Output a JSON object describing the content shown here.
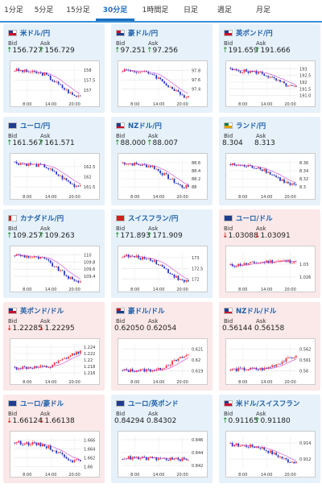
{
  "tabs": [
    {
      "id": "1m",
      "label": "1分足",
      "active": false
    },
    {
      "id": "5m",
      "label": "5分足",
      "active": false
    },
    {
      "id": "15m",
      "label": "15分足",
      "active": false
    },
    {
      "id": "30m",
      "label": "30分足",
      "active": true
    },
    {
      "id": "1h",
      "label": "1時間足",
      "active": false
    },
    {
      "id": "1d",
      "label": "日足",
      "active": false
    },
    {
      "id": "1w",
      "label": "週足",
      "active": false
    },
    {
      "id": "1mo",
      "label": "月足",
      "active": false
    }
  ],
  "labels": {
    "bid": "Bid",
    "ask": "Ask"
  },
  "colors": {
    "up": "#1a8a2a",
    "down": "#d01818",
    "candle_up": "#ff3030",
    "candle_down": "#2030c0",
    "ma": "#d040d0"
  },
  "cards": [
    {
      "id": "usdjpy",
      "flag": "us",
      "pair": "米ドル/円",
      "trend": "up",
      "bid": "156.727",
      "ask": "156.729",
      "bid_arrow": "↑",
      "ask_arrow": "↑",
      "chart_data": {
        "type": "candlestick",
        "x_ticks": [
          "8:00",
          "14:00",
          "20:00"
        ],
        "y_ticks": [
          "158",
          "157.5",
          "157"
        ],
        "ylim": [
          156.6,
          158.2
        ],
        "shape": "drop",
        "first": 158.0,
        "last": 156.72
      }
    },
    {
      "id": "audjpy",
      "flag": "au",
      "pair": "豪ドル/円",
      "trend": "up",
      "bid": "97.251",
      "ask": "97.256",
      "bid_arrow": "↑",
      "ask_arrow": "↑",
      "chart_data": {
        "type": "candlestick",
        "x_ticks": [
          "8:00",
          "14:00",
          "20:00"
        ],
        "y_ticks": [
          "97.8",
          "97.6",
          "97.4"
        ],
        "ylim": [
          97.2,
          97.9
        ],
        "shape": "drop",
        "first": 97.82,
        "last": 97.25
      }
    },
    {
      "id": "gbpjpy",
      "flag": "gb",
      "pair": "英ポンド/円",
      "trend": "up",
      "bid": "191.659",
      "ask": "191.666",
      "bid_arrow": "↑",
      "ask_arrow": "↑",
      "chart_data": {
        "type": "candlestick",
        "x_ticks": [
          "8:00",
          "14:00",
          "20:00"
        ],
        "y_ticks": [
          "193",
          "192.5",
          "192",
          "191.5",
          "191.0"
        ],
        "ylim": [
          190.8,
          193.2
        ],
        "shape": "drop",
        "first": 192.9,
        "last": 191.66
      }
    },
    {
      "id": "eurjpy",
      "flag": "eu",
      "pair": "ユーロ/円",
      "trend": "up",
      "bid": "161.567",
      "ask": "161.571",
      "bid_arrow": "↑",
      "ask_arrow": "↑",
      "chart_data": {
        "type": "candlestick",
        "x_ticks": [
          "8:00",
          "14:00",
          "20:00"
        ],
        "y_ticks": [
          "162.5",
          "162",
          "161.5"
        ],
        "ylim": [
          161.3,
          162.9
        ],
        "shape": "drop",
        "first": 162.7,
        "last": 161.57
      }
    },
    {
      "id": "nzdjpy",
      "flag": "nz",
      "pair": "NZドル/円",
      "trend": "up",
      "bid": "88.000",
      "ask": "88.007",
      "bid_arrow": "↑",
      "ask_arrow": "↑",
      "chart_data": {
        "type": "candlestick",
        "x_ticks": [
          "8:00",
          "14:00",
          "20:00"
        ],
        "y_ticks": [
          "88.6",
          "88.4",
          "88.2",
          "88"
        ],
        "ylim": [
          87.9,
          88.7
        ],
        "shape": "drop",
        "first": 88.6,
        "last": 88.0
      }
    },
    {
      "id": "zarjpy",
      "flag": "za",
      "pair": "ランド/円",
      "trend": "up",
      "bid": "8.304",
      "ask": "8.313",
      "bid_arrow": "",
      "ask_arrow": "",
      "chart_data": {
        "type": "candlestick",
        "x_ticks": [
          "8:00",
          "14:00",
          "20:00"
        ],
        "y_ticks": [
          "8.36",
          "8.34",
          "8.32",
          "8.3"
        ],
        "ylim": [
          8.29,
          8.37
        ],
        "shape": "drop",
        "first": 8.355,
        "last": 8.305
      }
    },
    {
      "id": "cadjpy",
      "flag": "ca",
      "pair": "カナダドル/円",
      "trend": "up",
      "bid": "109.257",
      "ask": "109.263",
      "bid_arrow": "↑",
      "ask_arrow": "↑",
      "chart_data": {
        "type": "candlestick",
        "x_ticks": [
          "8:00",
          "14:00",
          "20:00"
        ],
        "y_ticks": [
          "110",
          "109.8",
          "109.6",
          "109.4"
        ],
        "ylim": [
          109.2,
          110.1
        ],
        "shape": "drop",
        "first": 110.0,
        "last": 109.26
      }
    },
    {
      "id": "chfjpy",
      "flag": "ch",
      "pair": "スイスフラン/円",
      "trend": "up",
      "bid": "171.893",
      "ask": "171.909",
      "bid_arrow": "↑",
      "ask_arrow": "↑",
      "chart_data": {
        "type": "candlestick",
        "x_ticks": [
          "8:00",
          "14:00",
          "20:00"
        ],
        "y_ticks": [
          "173",
          "172.5",
          "172"
        ],
        "ylim": [
          171.8,
          173.3
        ],
        "shape": "drop",
        "first": 173.1,
        "last": 171.9
      }
    },
    {
      "id": "eurusd",
      "flag": "eu",
      "pair": "ユーロ/ドル",
      "trend": "down",
      "bid": "1.03088",
      "ask": "1.03091",
      "bid_arrow": "↓",
      "ask_arrow": "↓",
      "chart_data": {
        "type": "candlestick",
        "x_ticks": [
          "8:00",
          "14:00",
          "20:00"
        ],
        "y_ticks": [
          "1.03",
          "1.026"
        ],
        "ylim": [
          1.024,
          1.034
        ],
        "shape": "rise_flat",
        "first": 1.0295,
        "last": 1.0309
      }
    },
    {
      "id": "gbpusd",
      "flag": "gb",
      "pair": "英ポンド/ドル",
      "trend": "down",
      "bid": "1.22285",
      "ask": "1.22295",
      "bid_arrow": "↓",
      "ask_arrow": "↓",
      "chart_data": {
        "type": "candlestick",
        "x_ticks": [
          "8:00",
          "14:00",
          "20:00"
        ],
        "y_ticks": [
          "1.224",
          "1.222",
          "1.22",
          "1.218",
          "1.216"
        ],
        "ylim": [
          1.215,
          1.225
        ],
        "shape": "rise",
        "first": 1.2175,
        "last": 1.2229
      }
    },
    {
      "id": "audusd",
      "flag": "au",
      "pair": "豪ドル/ドル",
      "trend": "down",
      "bid": "0.62050",
      "ask": "0.62054",
      "bid_arrow": "",
      "ask_arrow": "",
      "chart_data": {
        "type": "candlestick",
        "x_ticks": [
          "8:00",
          "14:00",
          "20:00"
        ],
        "y_ticks": [
          "0.621",
          "0.62",
          "0.619"
        ],
        "ylim": [
          0.6185,
          0.6215
        ],
        "shape": "rise",
        "first": 0.619,
        "last": 0.6205
      }
    },
    {
      "id": "nzdusd",
      "flag": "nz",
      "pair": "NZドル/ドル",
      "trend": "down",
      "bid": "0.56144",
      "ask": "0.56158",
      "bid_arrow": "",
      "ask_arrow": "",
      "chart_data": {
        "type": "candlestick",
        "x_ticks": [
          "8:00",
          "14:00",
          "20:00"
        ],
        "y_ticks": [
          "0.562",
          "0.561",
          "0.56"
        ],
        "ylim": [
          0.5595,
          0.5625
        ],
        "shape": "rise",
        "first": 0.5601,
        "last": 0.5614
      }
    },
    {
      "id": "euraud",
      "flag": "eu",
      "pair": "ユーロ/豪ドル",
      "trend": "down",
      "bid": "1.66124",
      "ask": "1.66138",
      "bid_arrow": "↓",
      "ask_arrow": "↓",
      "chart_data": {
        "type": "candlestick",
        "x_ticks": [
          "8:00",
          "14:00",
          "20:00"
        ],
        "y_ticks": [
          "1.666",
          "1.664",
          "1.662",
          "1.66"
        ],
        "ylim": [
          1.6595,
          1.6668
        ],
        "shape": "drop",
        "first": 1.6655,
        "last": 1.6612
      }
    },
    {
      "id": "eurgbp",
      "flag": "eu",
      "pair": "ユーロ/英ポンド",
      "trend": "up",
      "bid": "0.84294",
      "ask": "0.84302",
      "bid_arrow": "",
      "ask_arrow": "",
      "chart_data": {
        "type": "candlestick",
        "x_ticks": [
          "8:00",
          "14:00",
          "20:00"
        ],
        "y_ticks": [
          "0.846",
          "0.844",
          "0.842"
        ],
        "ylim": [
          0.8415,
          0.8465
        ],
        "shape": "flat_spike",
        "first": 0.8432,
        "last": 0.8429
      }
    },
    {
      "id": "usdchf",
      "flag": "us",
      "pair": "米ドル/スイスフラン",
      "trend": "up",
      "bid": "0.91165",
      "ask": "0.91180",
      "bid_arrow": "↑",
      "ask_arrow": "↑",
      "chart_data": {
        "type": "candlestick",
        "x_ticks": [
          "8:00",
          "14:00",
          "20:00"
        ],
        "y_ticks": [
          "0.914",
          "0.912"
        ],
        "ylim": [
          0.9108,
          0.9148
        ],
        "shape": "drop",
        "first": 0.9138,
        "last": 0.9117
      }
    }
  ]
}
